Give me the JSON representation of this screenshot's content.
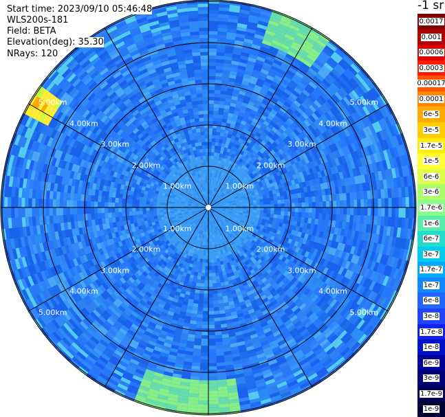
{
  "info": {
    "start_time": "Start time: 2023/09/10 05:46:48",
    "instrument": "WLS200s-181",
    "field": "Field: BETA",
    "elevation": "Elevation(deg): 35.30",
    "nrays": "NRays: 120"
  },
  "colorbar": {
    "unit": "-1 sr",
    "labels": [
      "0.0017",
      "0.001",
      "0.0006",
      "0.0003",
      "0.00017",
      "0.0001",
      "6e-5",
      "3e-5",
      "1.7e-5",
      "1e-5",
      "6e-6",
      "3e-6",
      "1.7e-6",
      "1e-6",
      "6e-7",
      "3e-7",
      "1.7e-7",
      "1e-7",
      "6e-8",
      "3e-8",
      "1.7e-8",
      "1e-8",
      "6e-9",
      "3e-9",
      "1.7e-9",
      "1e-9"
    ],
    "colors": [
      "#800000",
      "#b00000",
      "#dd0000",
      "#ff1a00",
      "#ff5500",
      "#ff8800",
      "#ffaa00",
      "#ffcc00",
      "#ffee00",
      "#ffff33",
      "#ddff44",
      "#aaff66",
      "#88ff88",
      "#55eeaa",
      "#22ddcc",
      "#00ccee",
      "#00aaff",
      "#1188ff",
      "#2266ff",
      "#2244ff",
      "#1122ee",
      "#0011cc",
      "#000099",
      "#000077",
      "#000055",
      "#000033"
    ]
  },
  "range_labels": [
    "1.00km",
    "2.00km",
    "3.00km",
    "4.00km",
    "5.00km"
  ],
  "ppi": {
    "rings": 5,
    "max_range_km": 5,
    "spokes": 12
  }
}
